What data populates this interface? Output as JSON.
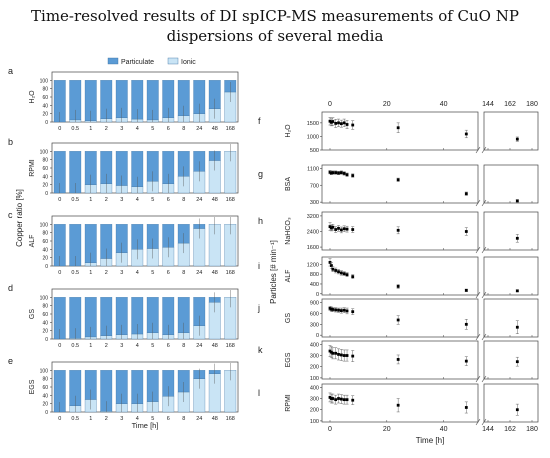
{
  "title_line1": "Time-resolved results of DI spICP-MS measurements of CuO NP",
  "title_line2": "dispersions of several media",
  "colors": {
    "particulate": "#5b9bd5",
    "ionic": "#c9e4f5",
    "stroke": "#3a6f9e",
    "marker": "#000000"
  },
  "left": {
    "categories": [
      "0",
      "0.5",
      "1",
      "2",
      "3",
      "4",
      "5",
      "6",
      "8",
      "24",
      "48",
      "168"
    ],
    "xlabel": "Time [h]",
    "ylabel": "Copper ratio [%]",
    "legend": [
      "Particulate",
      "Ionic"
    ],
    "yticks": [
      "0",
      "20",
      "40",
      "60",
      "80",
      "100"
    ]
  },
  "right": {
    "xlabel": "Time [h]",
    "ylabel": "Particles [# min⁻¹]",
    "top_ticks": [
      "0",
      "20",
      "40",
      "144",
      "162",
      "180"
    ],
    "bottom_ticks": [
      "0",
      "20",
      "40",
      "144",
      "162",
      "180"
    ]
  },
  "chart_data": [
    {
      "type": "bar",
      "stacked": true,
      "panel": "a",
      "label": "H2O",
      "categories": [
        "0",
        "0.5",
        "1",
        "2",
        "3",
        "4",
        "5",
        "6",
        "8",
        "24",
        "48",
        "168"
      ],
      "series": [
        {
          "name": "Particulate",
          "values": [
            100,
            95,
            97,
            92,
            90,
            93,
            95,
            90,
            85,
            80,
            68,
            28
          ]
        },
        {
          "name": "Ionic",
          "values": [
            0,
            5,
            3,
            8,
            10,
            7,
            5,
            10,
            15,
            20,
            32,
            72
          ]
        }
      ],
      "ylim": [
        0,
        120
      ]
    },
    {
      "type": "bar",
      "stacked": true,
      "panel": "b",
      "label": "RPMI",
      "categories": [
        "0",
        "0.5",
        "1",
        "2",
        "3",
        "4",
        "5",
        "6",
        "8",
        "24",
        "48",
        "168"
      ],
      "series": [
        {
          "name": "Particulate",
          "values": [
            100,
            100,
            80,
            78,
            82,
            85,
            72,
            78,
            60,
            48,
            22,
            0
          ]
        },
        {
          "name": "Ionic",
          "values": [
            0,
            0,
            20,
            22,
            18,
            15,
            28,
            22,
            40,
            52,
            78,
            100
          ]
        }
      ],
      "ylim": [
        0,
        120
      ]
    },
    {
      "type": "bar",
      "stacked": true,
      "panel": "c",
      "label": "ALF",
      "categories": [
        "0",
        "0.5",
        "1",
        "2",
        "3",
        "4",
        "5",
        "6",
        "8",
        "24",
        "48",
        "168"
      ],
      "series": [
        {
          "name": "Particulate",
          "values": [
            100,
            100,
            92,
            82,
            68,
            60,
            58,
            55,
            45,
            10,
            0,
            0
          ]
        },
        {
          "name": "Ionic",
          "values": [
            0,
            0,
            8,
            18,
            32,
            40,
            42,
            45,
            55,
            90,
            100,
            100
          ]
        }
      ],
      "ylim": [
        0,
        120
      ]
    },
    {
      "type": "bar",
      "stacked": true,
      "panel": "d",
      "label": "GS",
      "categories": [
        "0",
        "0.5",
        "1",
        "2",
        "3",
        "4",
        "5",
        "6",
        "8",
        "24",
        "48",
        "168"
      ],
      "series": [
        {
          "name": "Particulate",
          "values": [
            100,
            98,
            95,
            92,
            90,
            88,
            85,
            90,
            85,
            68,
            12,
            0
          ]
        },
        {
          "name": "Ionic",
          "values": [
            0,
            2,
            5,
            8,
            10,
            12,
            15,
            10,
            15,
            32,
            88,
            100
          ]
        }
      ],
      "ylim": [
        0,
        120
      ]
    },
    {
      "type": "bar",
      "stacked": true,
      "panel": "e",
      "label": "EGS",
      "categories": [
        "0",
        "0.5",
        "1",
        "2",
        "3",
        "4",
        "5",
        "6",
        "8",
        "24",
        "48",
        "168"
      ],
      "series": [
        {
          "name": "Particulate",
          "values": [
            100,
            85,
            70,
            98,
            80,
            80,
            75,
            62,
            52,
            20,
            8,
            0
          ]
        },
        {
          "name": "Ionic",
          "values": [
            0,
            15,
            30,
            2,
            20,
            20,
            25,
            38,
            48,
            80,
            92,
            100
          ]
        }
      ],
      "ylim": [
        0,
        120
      ]
    },
    {
      "type": "scatter",
      "panel": "f",
      "label": "H2O",
      "yticks": [
        500,
        1000,
        1500
      ],
      "ylim": [
        500,
        1900
      ],
      "x": [
        0,
        0.5,
        1,
        2,
        3,
        4,
        5,
        6,
        8,
        24,
        48,
        168
      ],
      "y": [
        1560,
        1520,
        1550,
        1480,
        1500,
        1470,
        1500,
        1440,
        1420,
        1320,
        1090,
        900
      ],
      "err": [
        140,
        130,
        140,
        150,
        140,
        130,
        140,
        150,
        160,
        180,
        140,
        80
      ]
    },
    {
      "type": "scatter",
      "panel": "g",
      "label": "BSA",
      "yticks": [
        300,
        700,
        1100
      ],
      "ylim": [
        280,
        1180
      ],
      "x": [
        0,
        0.5,
        1,
        2,
        3,
        4,
        5,
        6,
        8,
        24,
        48,
        168
      ],
      "y": [
        1010,
        990,
        1000,
        1000,
        990,
        1000,
        980,
        950,
        930,
        830,
        500,
        330
      ],
      "err": [
        40,
        40,
        40,
        40,
        40,
        40,
        40,
        40,
        40,
        40,
        40,
        30
      ]
    },
    {
      "type": "scatter",
      "panel": "h",
      "label": "NaHCO3",
      "yticks": [
        1600,
        2400,
        3200
      ],
      "ylim": [
        1450,
        3400
      ],
      "x": [
        0,
        0.5,
        1,
        2,
        3,
        4,
        5,
        6,
        8,
        24,
        48,
        168
      ],
      "y": [
        2650,
        2580,
        2620,
        2500,
        2560,
        2480,
        2540,
        2520,
        2500,
        2460,
        2400,
        2050
      ],
      "err": [
        200,
        150,
        150,
        150,
        150,
        150,
        150,
        150,
        150,
        180,
        200,
        200
      ]
    },
    {
      "type": "scatter",
      "panel": "i",
      "label": "ALF",
      "yticks": [
        0,
        400,
        800,
        1200
      ],
      "ylim": [
        -50,
        1500
      ],
      "x": [
        0,
        0.5,
        1,
        2,
        3,
        4,
        5,
        6,
        8,
        24,
        48,
        168
      ],
      "y": [
        1280,
        1150,
        1000,
        950,
        900,
        850,
        820,
        780,
        700,
        300,
        140,
        120
      ],
      "err": [
        150,
        120,
        100,
        100,
        90,
        90,
        80,
        80,
        80,
        80,
        50,
        40
      ]
    },
    {
      "type": "scatter",
      "panel": "j",
      "label": "GS",
      "yticks": [
        0,
        300,
        600,
        900
      ],
      "ylim": [
        -50,
        1000
      ],
      "x": [
        0,
        0.5,
        1,
        2,
        3,
        4,
        5,
        6,
        8,
        24,
        48,
        168
      ],
      "y": [
        740,
        720,
        710,
        700,
        690,
        680,
        690,
        670,
        650,
        420,
        300,
        220
      ],
      "err": [
        60,
        60,
        60,
        60,
        60,
        70,
        70,
        80,
        80,
        120,
        140,
        180
      ]
    },
    {
      "type": "scatter",
      "panel": "k",
      "label": "EGS",
      "yticks": [
        100,
        200,
        300,
        400
      ],
      "ylim": [
        90,
        430
      ],
      "x": [
        0,
        0.5,
        1,
        2,
        3,
        4,
        5,
        6,
        8,
        24,
        48,
        168
      ],
      "y": [
        340,
        330,
        320,
        320,
        310,
        305,
        300,
        300,
        295,
        265,
        250,
        245
      ],
      "err": [
        50,
        50,
        50,
        50,
        50,
        50,
        50,
        50,
        50,
        40,
        40,
        40
      ]
    },
    {
      "type": "scatter",
      "panel": "l",
      "label": "RPMI",
      "yticks": [
        100,
        200,
        300,
        400
      ],
      "ylim": [
        90,
        430
      ],
      "x": [
        0,
        0.5,
        1,
        2,
        3,
        4,
        5,
        6,
        8,
        24,
        48,
        168
      ],
      "y": [
        310,
        300,
        300,
        290,
        300,
        295,
        290,
        290,
        285,
        240,
        220,
        200
      ],
      "err": [
        40,
        40,
        40,
        40,
        40,
        40,
        40,
        40,
        40,
        60,
        50,
        50
      ]
    }
  ]
}
